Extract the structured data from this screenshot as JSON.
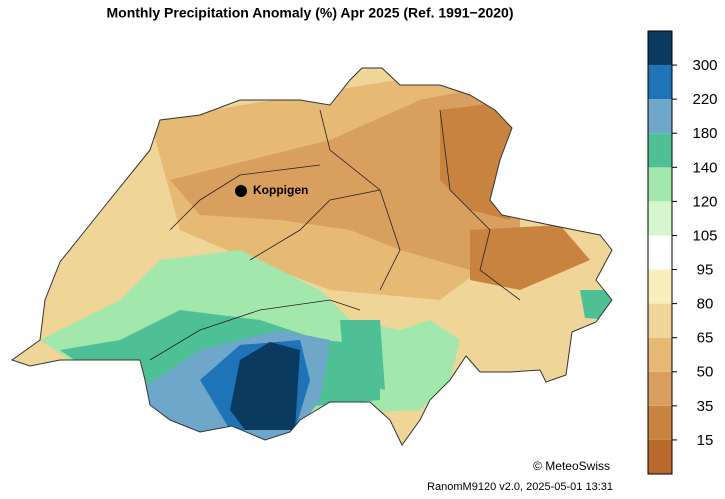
{
  "title": "Monthly Precipitation Anomaly (%) Apr 2025  (Ref. 1991−2020)",
  "legend": {
    "ticks": [
      15,
      35,
      50,
      65,
      80,
      95,
      105,
      120,
      140,
      180,
      220,
      300
    ],
    "colors": [
      "#b8692b",
      "#c98340",
      "#d99f5e",
      "#e6ba75",
      "#efd598",
      "#f9efbd",
      "#ffffff",
      "#d6f6cf",
      "#a2e8ad",
      "#4fbf95",
      "#6ea7c9",
      "#1f73b7",
      "#0a3a5f"
    ]
  },
  "place": "Koppigen",
  "copyright": "© MeteoSwiss",
  "footer": "RanomM9120 v2.0, 2025-05-01 13:31"
}
